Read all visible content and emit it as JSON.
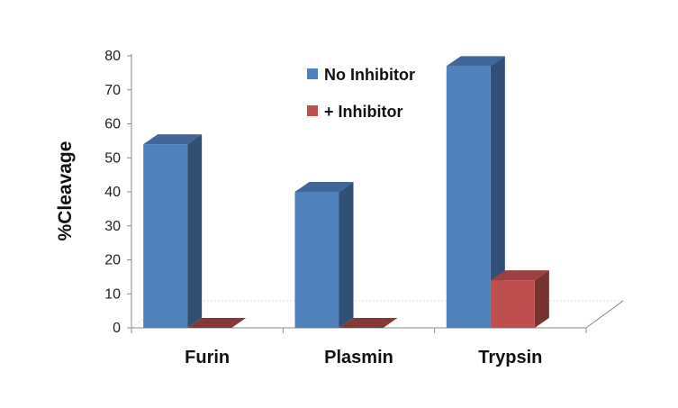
{
  "chart_data": {
    "type": "bar",
    "style": "3d-clustered-column",
    "categories": [
      "Furin",
      "Plasmin",
      "Trypsin"
    ],
    "series": [
      {
        "name": "No Inhibitor",
        "values": [
          54,
          40,
          77
        ],
        "color": "#4F81BD"
      },
      {
        "name": "+ Inhibitor",
        "values": [
          0,
          0,
          14
        ],
        "color": "#C0504D"
      }
    ],
    "title": "",
    "xlabel": "",
    "ylabel": "%Cleavage",
    "ylim": [
      0,
      80
    ],
    "yticks": [
      0,
      10,
      20,
      30,
      40,
      50,
      60,
      70,
      80
    ],
    "grid": false,
    "legend": "top-center"
  }
}
